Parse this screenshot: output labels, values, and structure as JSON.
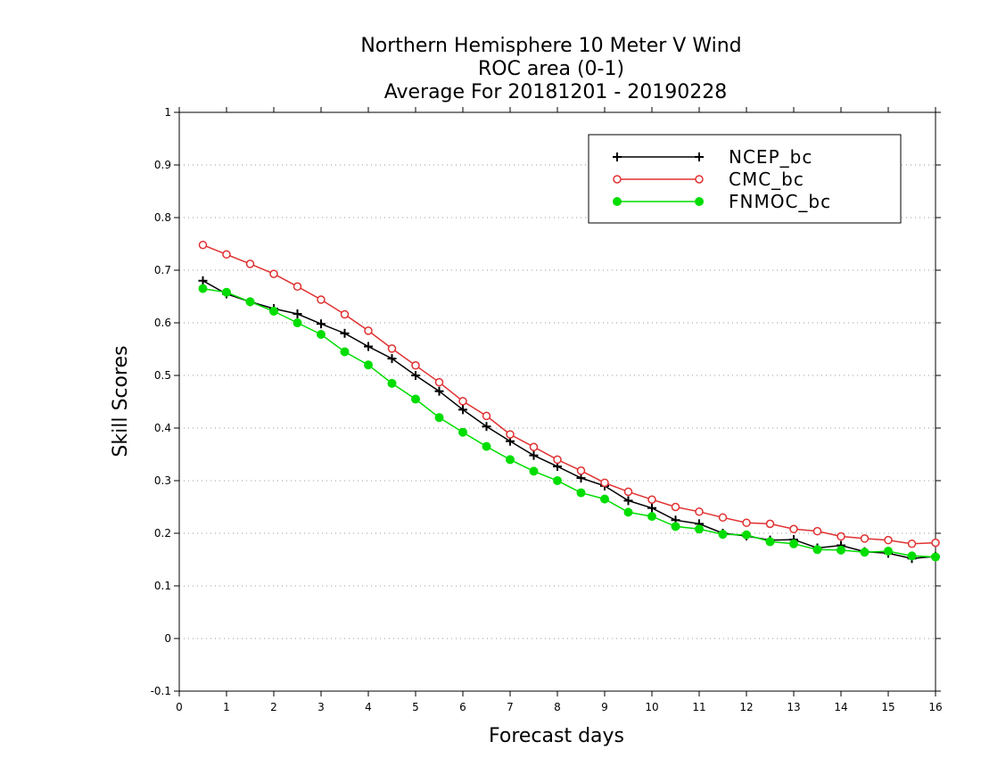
{
  "chart_data": {
    "type": "line",
    "title_lines": [
      "Northern Hemisphere 10 Meter V Wind",
      "ROC area (0-1)",
      "Average For 20181201 - 20190228"
    ],
    "xlabel": "Forecast days",
    "ylabel": "Skill Scores",
    "xlim": [
      0,
      16
    ],
    "ylim": [
      -0.1,
      1
    ],
    "xticks": [
      "0",
      "1",
      "2",
      "3",
      "4",
      "5",
      "6",
      "7",
      "8",
      "9",
      "10",
      "11",
      "12",
      "13",
      "14",
      "15",
      "16"
    ],
    "yticks": [
      "-0.1",
      "0",
      "0.1",
      "0.2",
      "0.3",
      "0.4",
      "0.5",
      "0.6",
      "0.7",
      "0.8",
      "0.9",
      "1"
    ],
    "grid": "horizontal dotted",
    "legend_position": "top-right",
    "x": [
      0.5,
      1,
      1.5,
      2,
      2.5,
      3,
      3.5,
      4,
      4.5,
      5,
      5.5,
      6,
      6.5,
      7,
      7.5,
      8,
      8.5,
      9,
      9.5,
      10,
      10.5,
      11,
      11.5,
      12,
      12.5,
      13,
      13.5,
      14,
      14.5,
      15,
      15.5,
      16
    ],
    "series": [
      {
        "name": "NCEP_bc",
        "color": "#000000",
        "marker": "plus",
        "values": [
          0.68,
          0.655,
          0.64,
          0.627,
          0.617,
          0.598,
          0.58,
          0.555,
          0.532,
          0.5,
          0.47,
          0.435,
          0.403,
          0.375,
          0.348,
          0.327,
          0.305,
          0.29,
          0.262,
          0.248,
          0.225,
          0.218,
          0.2,
          0.195,
          0.187,
          0.188,
          0.172,
          0.177,
          0.165,
          0.162,
          0.152,
          0.156
        ]
      },
      {
        "name": "CMC_bc",
        "color": "#e03030",
        "marker": "open-circle",
        "values": [
          0.748,
          0.73,
          0.712,
          0.693,
          0.669,
          0.644,
          0.616,
          0.585,
          0.551,
          0.519,
          0.487,
          0.451,
          0.423,
          0.388,
          0.364,
          0.34,
          0.319,
          0.296,
          0.279,
          0.264,
          0.25,
          0.241,
          0.23,
          0.22,
          0.218,
          0.208,
          0.204,
          0.194,
          0.19,
          0.187,
          0.18,
          0.182
        ]
      },
      {
        "name": "FNMOC_bc",
        "color": "#00dd00",
        "marker": "filled-circle",
        "values": [
          0.665,
          0.658,
          0.64,
          0.622,
          0.6,
          0.578,
          0.545,
          0.52,
          0.485,
          0.455,
          0.42,
          0.392,
          0.365,
          0.34,
          0.318,
          0.3,
          0.277,
          0.265,
          0.24,
          0.232,
          0.213,
          0.208,
          0.198,
          0.197,
          0.184,
          0.18,
          0.169,
          0.168,
          0.164,
          0.166,
          0.157,
          0.155
        ]
      }
    ]
  }
}
